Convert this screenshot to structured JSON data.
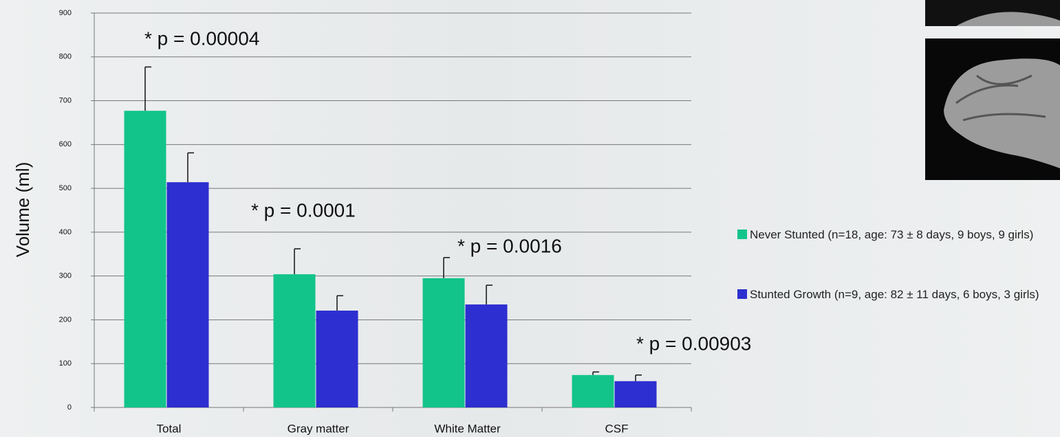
{
  "chart_data": {
    "type": "bar",
    "ylabel": "Volume (ml)",
    "categories": [
      "Total",
      "Gray matter",
      "White Matter",
      "CSF"
    ],
    "series": [
      {
        "name": "Never Stunted (n=18, age: 73 ± 8 days, 9 boys, 9 girls)",
        "color": "#13c48a",
        "values": [
          677,
          304,
          295,
          74
        ],
        "errors": [
          100,
          58,
          47,
          7
        ]
      },
      {
        "name": "Stunted Growth (n=9, age: 82 ± 11 days, 6 boys, 3 girls)",
        "color": "#2d2fd0",
        "values": [
          514,
          221,
          235,
          60
        ],
        "errors": [
          67,
          34,
          44,
          14
        ]
      }
    ],
    "annotations": [
      "* p = 0.00004",
      "* p = 0.0001",
      "* p = 0.0016",
      "* p = 0.00903"
    ],
    "ylim": [
      0,
      900
    ],
    "yticks": [
      0,
      100,
      200,
      300,
      400,
      500,
      600,
      700,
      800,
      900
    ],
    "grid": true
  }
}
